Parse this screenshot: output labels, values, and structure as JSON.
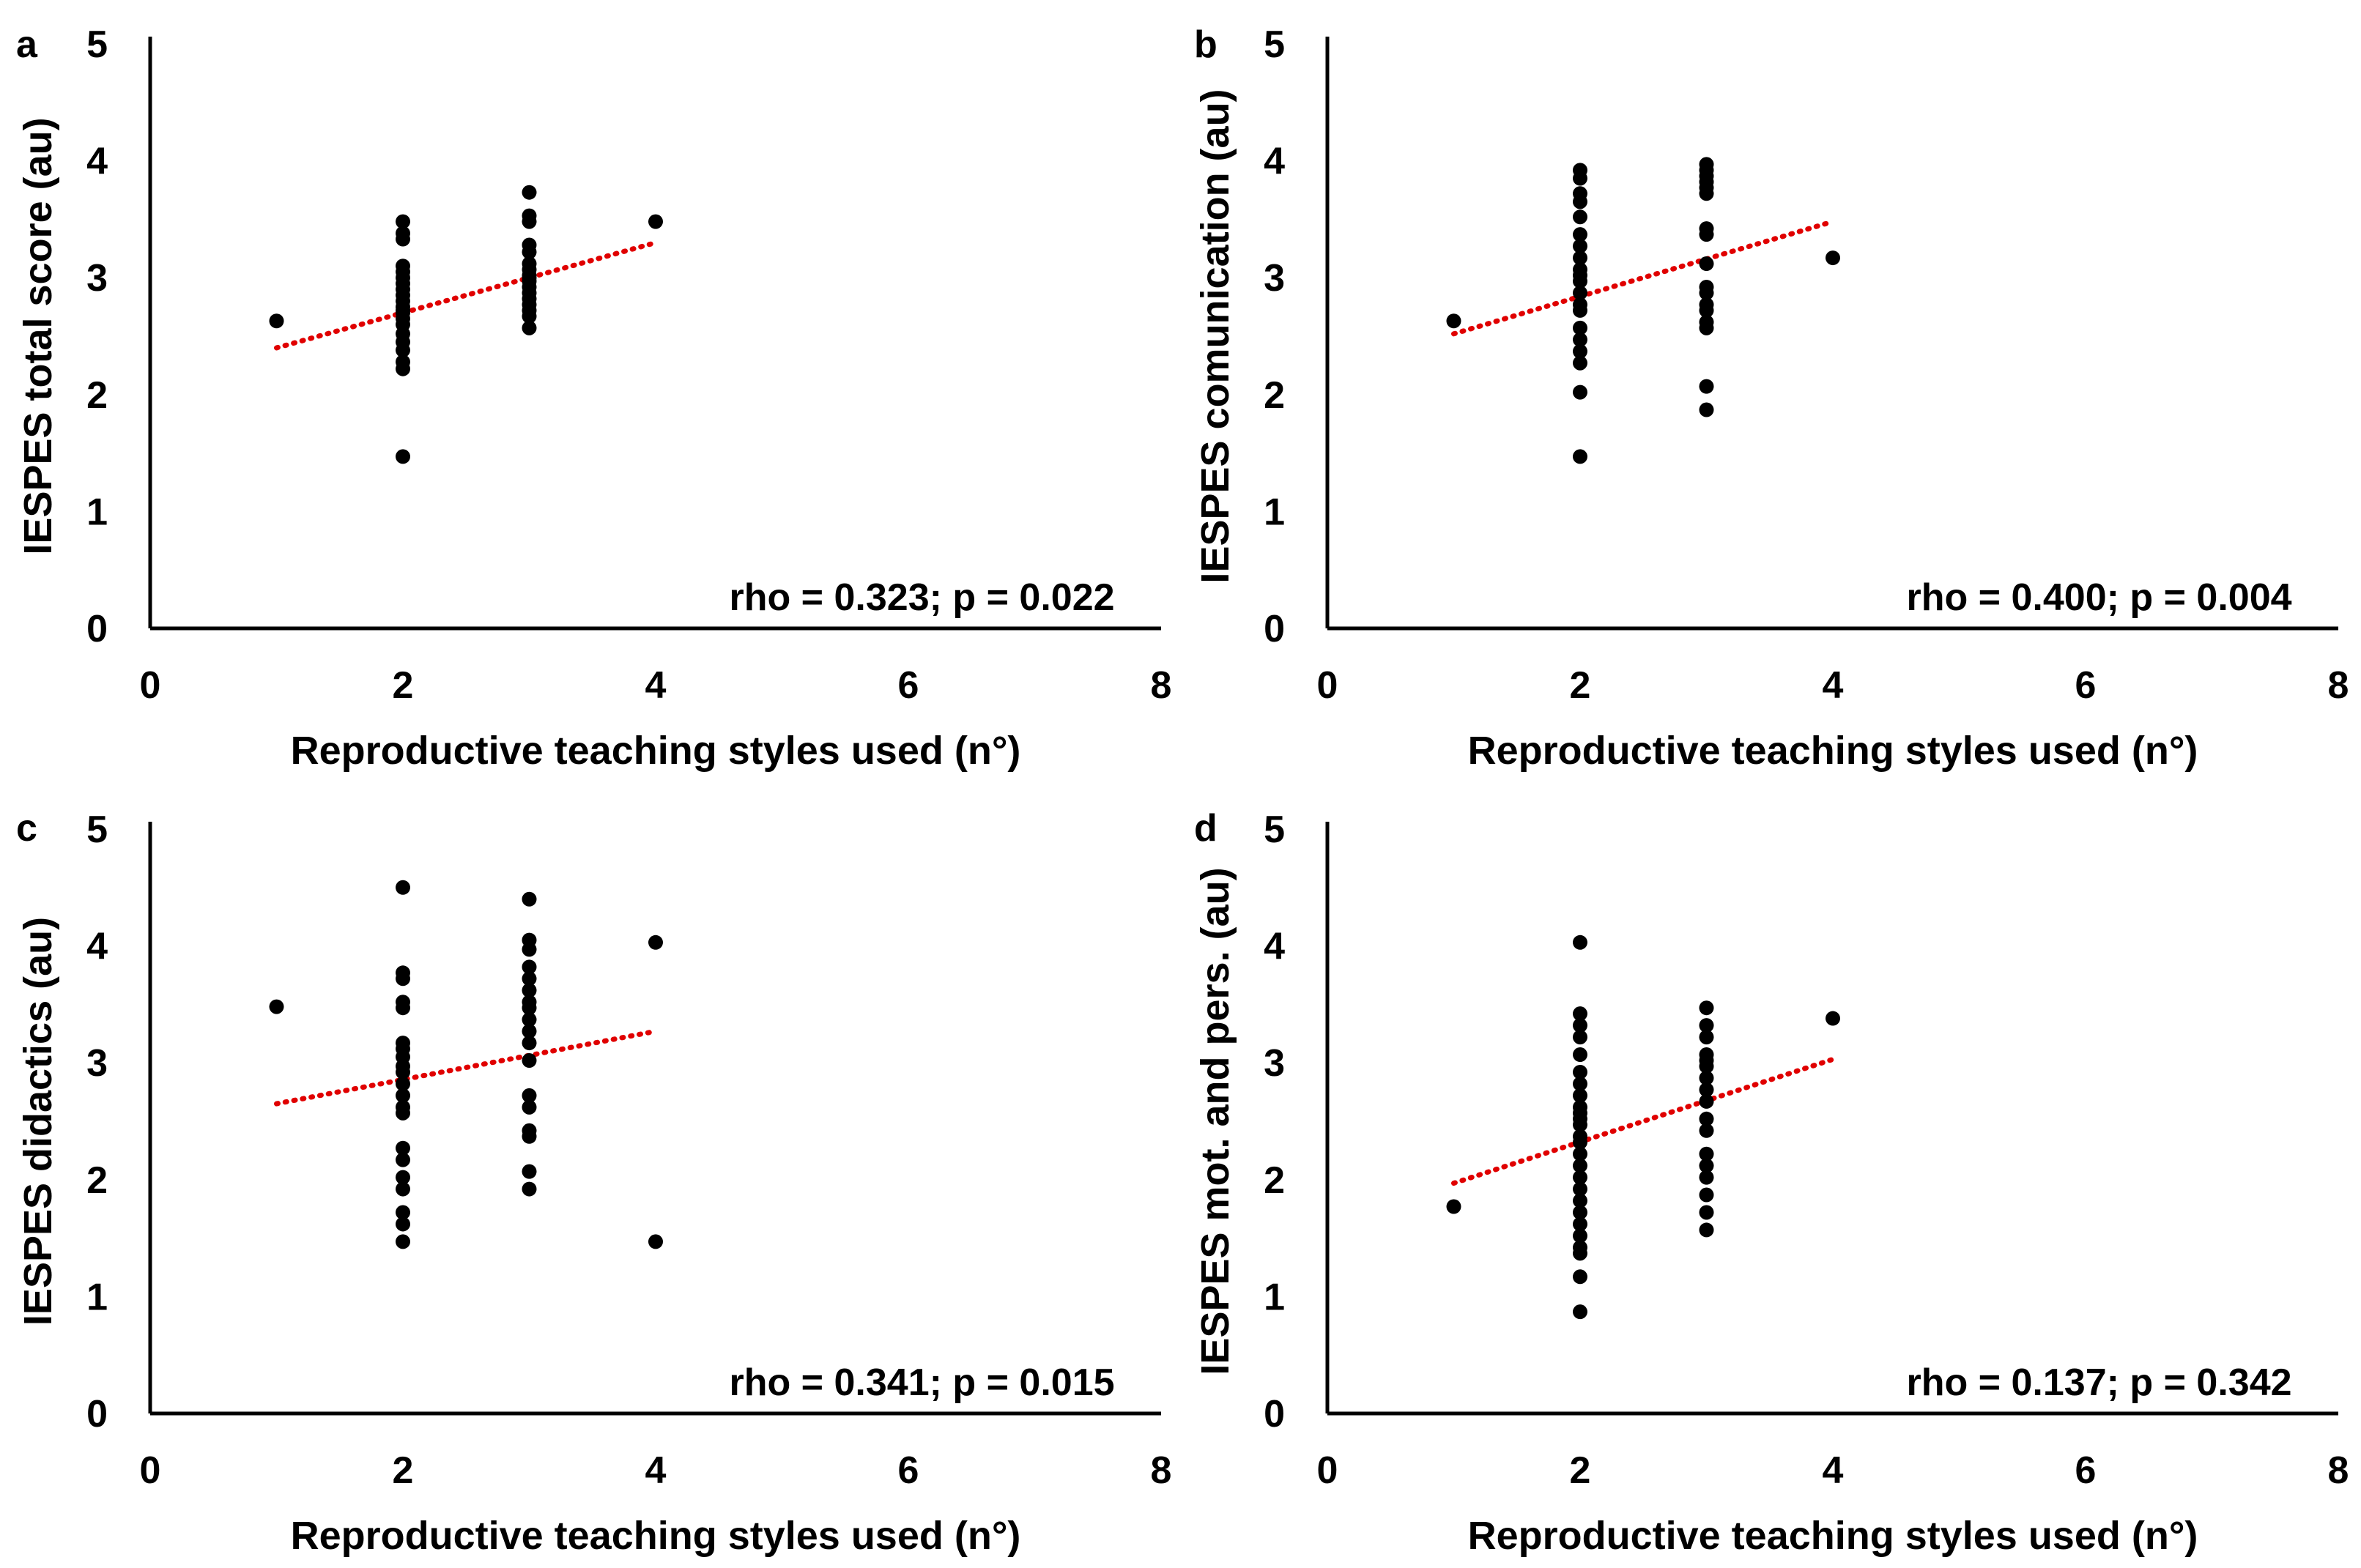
{
  "figure": {
    "panels": [
      "a",
      "b",
      "c",
      "d"
    ]
  },
  "colors": {
    "points": "#000000",
    "trendline": "#e00000",
    "axes": "#000000"
  },
  "chart_data": [
    {
      "type": "scatter",
      "panel_label": "a",
      "xlabel": "Reproductive teaching styles used (n°)",
      "ylabel": "IESPES total score (au)",
      "xlim": [
        0,
        8
      ],
      "ylim": [
        0,
        5
      ],
      "xticks": [
        0,
        2,
        4,
        6,
        8
      ],
      "yticks": [
        0,
        1,
        2,
        3,
        4,
        5
      ],
      "grid": false,
      "trendline": {
        "style": "dotted",
        "x": [
          1,
          4
        ],
        "y": [
          2.4,
          3.3
        ]
      },
      "annotation": "rho = 0.323; p = 0.022",
      "points": {
        "x": [
          1,
          2,
          2,
          2,
          2,
          2,
          2,
          2,
          2,
          2,
          2,
          2,
          2,
          2,
          2,
          2,
          2,
          2,
          2,
          2,
          2,
          2,
          3,
          3,
          3,
          3,
          3,
          3,
          3,
          3,
          3,
          3,
          3,
          3,
          3,
          3,
          3,
          3,
          3,
          4
        ],
        "y": [
          2.63,
          3.48,
          3.38,
          3.33,
          3.1,
          3.05,
          3.0,
          2.95,
          2.9,
          2.85,
          2.8,
          2.75,
          2.72,
          2.7,
          2.65,
          2.6,
          2.52,
          2.45,
          2.38,
          2.28,
          2.22,
          1.47,
          3.73,
          3.53,
          3.48,
          3.28,
          3.22,
          3.12,
          3.07,
          3.02,
          3.0,
          2.97,
          2.92,
          2.87,
          2.82,
          2.77,
          2.72,
          2.67,
          2.57,
          3.48
        ]
      }
    },
    {
      "type": "scatter",
      "panel_label": "b",
      "xlabel": "Reproductive teaching styles used (n°)",
      "ylabel": "IESPES comunication (au)",
      "xlim": [
        0,
        8
      ],
      "ylim": [
        0,
        5
      ],
      "xticks": [
        0,
        2,
        4,
        6,
        8
      ],
      "yticks": [
        0,
        1,
        2,
        3,
        4,
        5
      ],
      "grid": false,
      "trendline": {
        "style": "dotted",
        "x": [
          1,
          4
        ],
        "y": [
          2.52,
          3.48
        ]
      },
      "annotation": "rho = 0.400; p = 0.004",
      "points": {
        "x": [
          1,
          2,
          2,
          2,
          2,
          2,
          2,
          2,
          2,
          2,
          2,
          2,
          2,
          2,
          2,
          2,
          2,
          2,
          2,
          2,
          2,
          3,
          3,
          3,
          3,
          3,
          3,
          3,
          3,
          3,
          3,
          3,
          3,
          3,
          3,
          3,
          3,
          3,
          4
        ],
        "y": [
          2.63,
          3.92,
          3.72,
          3.65,
          3.52,
          3.37,
          3.27,
          3.17,
          3.07,
          3.02,
          2.97,
          2.87,
          2.77,
          2.72,
          2.57,
          2.47,
          2.37,
          2.27,
          2.02,
          1.47,
          3.85,
          3.97,
          3.92,
          3.87,
          3.82,
          3.77,
          3.72,
          3.42,
          3.37,
          3.12,
          2.92,
          2.87,
          2.77,
          2.72,
          2.62,
          2.57,
          2.07,
          1.87,
          3.17
        ]
      }
    },
    {
      "type": "scatter",
      "panel_label": "c",
      "xlabel": "Reproductive teaching styles used (n°)",
      "ylabel": "IESPES didactics (au)",
      "xlim": [
        0,
        8
      ],
      "ylim": [
        0,
        5
      ],
      "xticks": [
        0,
        2,
        4,
        6,
        8
      ],
      "yticks": [
        0,
        1,
        2,
        3,
        4,
        5
      ],
      "grid": false,
      "trendline": {
        "style": "dotted",
        "x": [
          1,
          4
        ],
        "y": [
          2.65,
          3.27
        ]
      },
      "annotation": "rho = 0.341; p = 0.015",
      "points": {
        "x": [
          1,
          2,
          2,
          2,
          2,
          2,
          2,
          2,
          2,
          2,
          2,
          2,
          2,
          2,
          2,
          2,
          2,
          2,
          2,
          2,
          2,
          2,
          3,
          3,
          3,
          3,
          3,
          3,
          3,
          3,
          3,
          3,
          3,
          3,
          3,
          3,
          3,
          3,
          3,
          3,
          4
        ],
        "y": [
          3.48,
          4.5,
          3.77,
          3.72,
          3.52,
          3.47,
          3.17,
          3.12,
          3.05,
          2.97,
          2.92,
          2.82,
          2.72,
          2.62,
          2.57,
          2.27,
          2.17,
          2.02,
          1.92,
          1.72,
          1.62,
          1.47,
          4.4,
          4.05,
          3.97,
          3.82,
          3.72,
          3.62,
          3.52,
          3.47,
          3.37,
          3.27,
          3.17,
          3.02,
          2.72,
          2.62,
          2.42,
          2.37,
          2.07,
          1.92,
          1.47
        ],
        "x_extra": [
          4
        ],
        "y_extra": [
          4.03
        ]
      }
    },
    {
      "type": "scatter",
      "panel_label": "d",
      "xlabel": "Reproductive teaching styles used (n°)",
      "ylabel": "IESPES mot. and pers. (au)",
      "xlim": [
        0,
        8
      ],
      "ylim": [
        0,
        5
      ],
      "xticks": [
        0,
        2,
        4,
        6,
        8
      ],
      "yticks": [
        0,
        1,
        2,
        3,
        4,
        5
      ],
      "grid": false,
      "trendline": {
        "style": "dotted",
        "x": [
          1,
          4
        ],
        "y": [
          1.97,
          3.03
        ]
      },
      "annotation": "rho = 0.137; p = 0.342",
      "points": {
        "x": [
          1,
          2,
          2,
          2,
          2,
          2,
          2,
          2,
          2,
          2,
          2,
          2,
          2,
          2,
          2,
          2,
          2,
          2,
          2,
          2,
          2,
          2,
          2,
          2,
          2,
          2,
          2,
          3,
          3,
          3,
          3,
          3,
          3,
          3,
          3,
          3,
          3,
          3,
          3,
          3,
          3,
          3,
          3,
          3,
          4
        ],
        "y": [
          1.77,
          4.03,
          3.42,
          3.32,
          3.22,
          3.07,
          2.92,
          2.82,
          2.72,
          2.62,
          2.47,
          2.37,
          2.32,
          2.22,
          2.12,
          2.02,
          1.92,
          1.82,
          1.72,
          1.62,
          1.52,
          1.42,
          1.37,
          1.17,
          0.87,
          2.57,
          2.52,
          3.47,
          3.32,
          3.22,
          3.07,
          2.97,
          2.87,
          2.77,
          2.67,
          2.52,
          2.42,
          2.22,
          2.12,
          2.02,
          1.87,
          1.72,
          1.57,
          3.02,
          3.38
        ]
      }
    }
  ]
}
